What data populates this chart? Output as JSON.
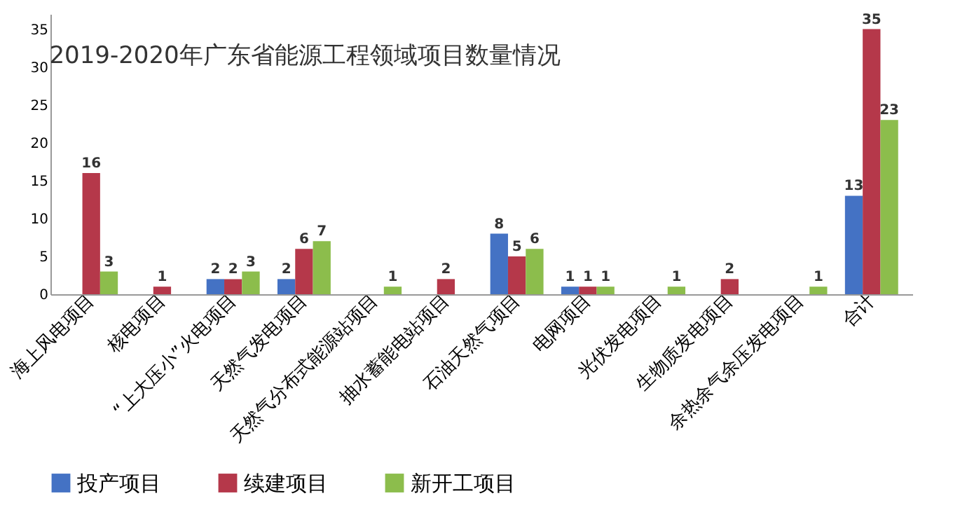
{
  "chart_data": {
    "type": "bar",
    "title": "2019-2020年广东省能源工程领域项目数量情况",
    "categories": [
      "海上风电项目",
      "核电项目",
      "“上大压小”火电项目",
      "天然气发电项目",
      "天然气分布式能源站项目",
      "抽水蓄能电站项目",
      "石油天然气项目",
      "电网项目",
      "光伏发电项目",
      "生物质发电项目",
      "余热余气余压发电项目",
      "合计"
    ],
    "series": [
      {
        "name": "投产项目",
        "color": "#4472c4",
        "values": [
          null,
          null,
          2,
          2,
          null,
          null,
          8,
          1,
          null,
          null,
          null,
          13
        ]
      },
      {
        "name": "续建项目",
        "color": "#b5384a",
        "values": [
          16,
          1,
          2,
          6,
          null,
          2,
          5,
          1,
          null,
          2,
          null,
          35
        ]
      },
      {
        "name": "新开工项目",
        "color": "#8cbd4c",
        "values": [
          3,
          null,
          3,
          7,
          1,
          null,
          6,
          1,
          1,
          null,
          1,
          23
        ]
      }
    ],
    "ylim": [
      0,
      37
    ],
    "yticks": [
      0,
      5,
      10,
      15,
      20,
      25,
      30,
      35
    ],
    "grid": false,
    "legend": "bottom",
    "data_labels": true
  }
}
